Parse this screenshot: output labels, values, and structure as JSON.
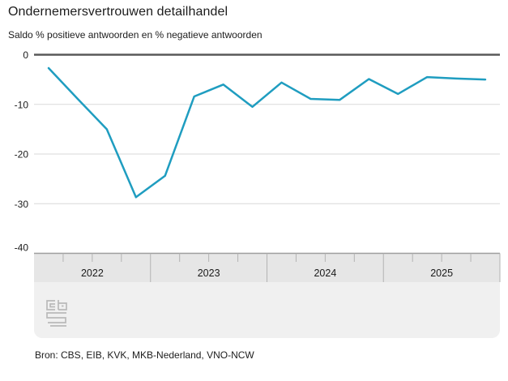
{
  "header": {
    "title": "Ondernemersvertrouwen detailhandel",
    "subtitle": "Saldo % positieve antwoorden en % negatieve antwoorden"
  },
  "chart_data": {
    "type": "line",
    "title": "Ondernemersvertrouwen detailhandel",
    "subtitle": "Saldo % positieve antwoorden en % negatieve antwoorden",
    "categories": [
      "2022-Q1",
      "2022-Q2",
      "2022-Q3",
      "2022-Q4",
      "2023-Q1",
      "2023-Q2",
      "2023-Q3",
      "2023-Q4",
      "2024-Q1",
      "2024-Q2",
      "2024-Q3",
      "2024-Q4",
      "2025-Q1",
      "2025-Q2",
      "2025-Q3",
      "2025-Q4"
    ],
    "values": [
      -2.7,
      -8.9,
      -15.0,
      -28.7,
      -24.4,
      -8.4,
      -6.0,
      -10.5,
      -5.6,
      -8.9,
      -9.1,
      -4.9,
      -7.9,
      -4.5,
      -4.8,
      -5.0
    ],
    "xticks": [
      "2022",
      "2023",
      "2024",
      "2025"
    ],
    "yticks": [
      0,
      -10,
      -20,
      -30,
      -40
    ],
    "ytick_labels": [
      "0",
      "-10",
      "-20",
      "-30",
      "-40"
    ],
    "ylim": [
      -40,
      0
    ],
    "xlabel": "",
    "ylabel": "",
    "grid": true,
    "legend": false,
    "line_color": "#1f9dc0",
    "zero_line_color": "#595959",
    "gridline_color": "#d9d9d9",
    "axis_band_color": "#e6e6e6",
    "footer_band_color": "#f0f0f0",
    "tick_color": "#b3b3b3",
    "band_border_color": "#9e9e9e",
    "text_color": "#1a1a1a"
  },
  "footer": {
    "source": "Bron: CBS, EIB, KVK, MKB-Nederland, VNO-NCW"
  },
  "logo": {
    "name": "cbs-logo",
    "color": "#b9b9b9"
  }
}
